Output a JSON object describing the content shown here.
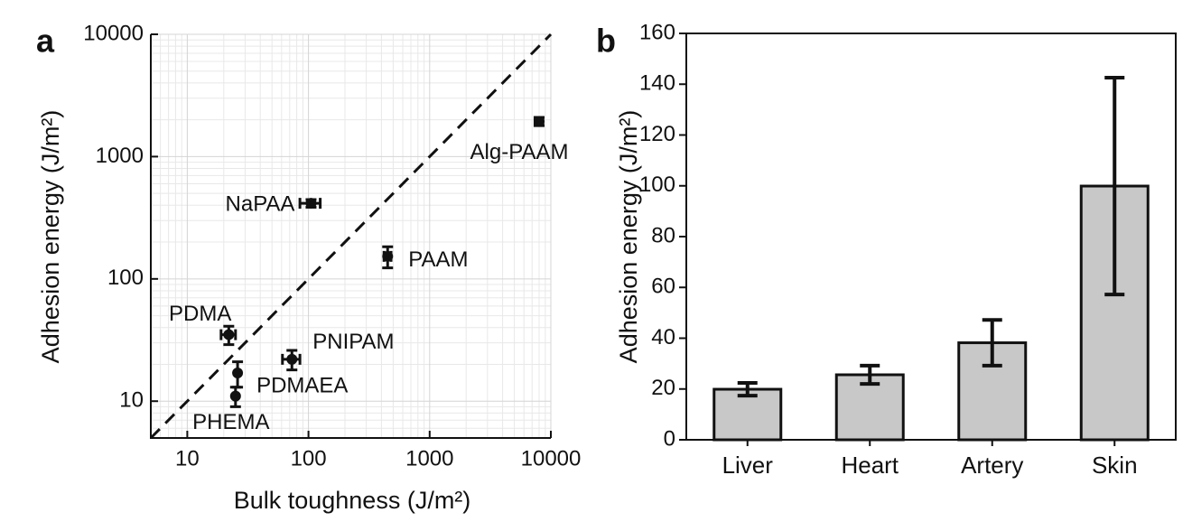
{
  "chart_data": [
    {
      "type": "scatter",
      "panel": "a",
      "x_label": "Bulk toughness (J/m²)",
      "y_label": "Adhesion energy (J/m²)",
      "xlog": true,
      "ylog": true,
      "grid": true,
      "diagonal": true,
      "color": "#111111",
      "xlim": [
        5,
        10000
      ],
      "ylim": [
        5,
        10000
      ],
      "xticks": [
        10,
        100,
        1000,
        10000
      ],
      "yticks": [
        10,
        100,
        1000,
        10000
      ],
      "labels": [
        "Alg-PAAM",
        "NaPAA",
        "PAAM",
        "PDMA",
        "PNIPAM",
        "PDMAEA",
        "PHEMA"
      ],
      "x": [
        8000,
        105,
        450,
        22,
        73,
        26,
        25
      ],
      "x_err": [
        600,
        20,
        30,
        3,
        12,
        0,
        0
      ],
      "values": [
        1940,
        415,
        153,
        35,
        22,
        17,
        11
      ],
      "y_err": [
        150,
        30,
        30,
        6,
        4,
        4,
        2
      ]
    },
    {
      "type": "bar",
      "panel": "b",
      "y_label": "Adhesion energy (J/m²)",
      "color": "#c8c8c8",
      "categories": [
        "Liver",
        "Heart",
        "Artery",
        "Skin"
      ],
      "values": [
        19.9,
        25.6,
        38.2,
        99.9
      ],
      "errors": [
        2.5,
        3.6,
        9,
        42.7
      ],
      "ylim": [
        0,
        160
      ],
      "yticks": [
        0,
        20,
        40,
        60,
        80,
        100,
        120,
        140,
        160
      ]
    }
  ]
}
